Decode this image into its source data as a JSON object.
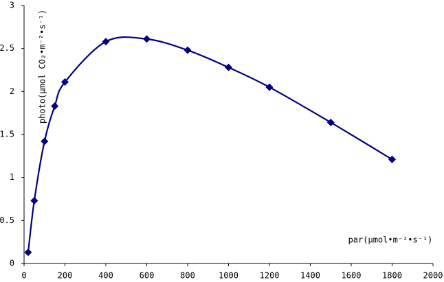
{
  "chart_data": {
    "type": "line",
    "x_label": "par(μmol•m⁻²•s⁻¹)",
    "y_label": "photo(μmol CO₂•m⁻²•s⁻¹)",
    "series": [
      {
        "name": "photo",
        "color": "#000080",
        "x": [
          20,
          50,
          100,
          150,
          200,
          400,
          600,
          800,
          1000,
          1200,
          1500,
          1800
        ],
        "values": [
          0.13,
          0.73,
          1.42,
          1.83,
          2.11,
          2.58,
          2.61,
          2.48,
          2.28,
          2.05,
          1.64,
          1.21
        ]
      }
    ],
    "xlim": [
      0,
      2000
    ],
    "xticks": [
      0,
      200,
      400,
      600,
      800,
      1000,
      1200,
      1400,
      1600,
      1800,
      2000
    ],
    "ylim": [
      0,
      3
    ],
    "yticks": [
      0,
      0.5,
      1,
      1.5,
      2,
      2.5,
      3
    ],
    "grid": false,
    "smooth": true,
    "marker": "diamond"
  }
}
